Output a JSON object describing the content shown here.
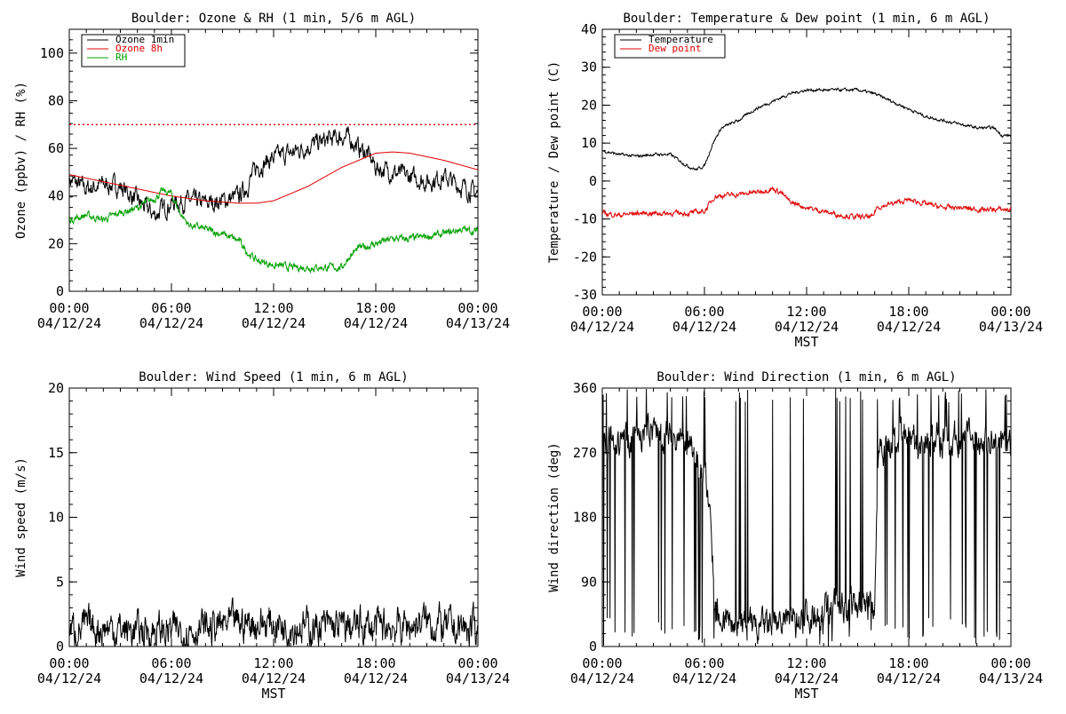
{
  "chart_data": [
    {
      "type": "line",
      "title": "Boulder: Ozone & RH (1 min, 5/6 m AGL)",
      "xlabel": "",
      "ylabel": "Ozone (ppbv) / RH (%)",
      "xlim": [
        0,
        24
      ],
      "ylim": [
        0,
        110
      ],
      "yticks": [
        0,
        20,
        40,
        60,
        80,
        100
      ],
      "xticks": [
        "00:00\n04/12/24",
        "06:00\n04/12/24",
        "12:00\n04/12/24",
        "18:00\n04/12/24",
        "00:00\n04/13/24"
      ],
      "legend": "top-left",
      "reference_line": {
        "y": 70,
        "color": "#e00000",
        "style": "dotted"
      },
      "series": [
        {
          "name": "Ozone 1min",
          "color": "#000000",
          "noise": 3,
          "x": [
            0,
            1,
            2,
            3,
            4,
            5,
            6,
            7,
            8,
            9,
            10,
            10.5,
            11,
            12,
            13,
            14,
            15,
            16,
            16.5,
            17,
            17.5,
            18,
            19,
            20,
            21,
            22,
            23,
            24
          ],
          "y": [
            47,
            43,
            45,
            44,
            38,
            32,
            37,
            38,
            37,
            38,
            40,
            45,
            52,
            56,
            58,
            61,
            63,
            65,
            64,
            60,
            58,
            52,
            50,
            48,
            46,
            48,
            44,
            41
          ]
        },
        {
          "name": "Ozone 8h",
          "color": "#e00000",
          "noise": 0,
          "x": [
            0,
            2,
            4,
            6,
            8,
            10,
            11,
            12,
            14,
            16,
            18,
            19,
            20,
            22,
            24
          ],
          "y": [
            49,
            46,
            43,
            40,
            38,
            37,
            37,
            38,
            44,
            52,
            58,
            58.5,
            58,
            55,
            51
          ]
        },
        {
          "name": "RH",
          "color": "#00a000",
          "noise": 1.2,
          "x": [
            0,
            1,
            2,
            3,
            4,
            5,
            5.5,
            6,
            6.5,
            7,
            8,
            9,
            10,
            10.5,
            11,
            12,
            13,
            14,
            15,
            16,
            16.5,
            17,
            18,
            19,
            20,
            21,
            22,
            23,
            24
          ],
          "y": [
            30,
            32,
            30,
            33,
            35,
            39,
            42,
            41,
            33,
            28,
            26,
            24,
            21,
            16,
            13,
            11,
            10,
            10,
            10,
            10,
            15,
            18,
            20,
            22,
            22,
            23,
            24,
            26,
            25
          ]
        }
      ]
    },
    {
      "type": "line",
      "title": "Boulder: Temperature & Dew point (1 min, 6 m AGL)",
      "xlabel": "MST",
      "ylabel": "Temperature / Dew point (C)",
      "xlim": [
        0,
        24
      ],
      "ylim": [
        -30,
        40
      ],
      "yticks": [
        -30,
        -20,
        -10,
        0,
        10,
        20,
        30,
        40
      ],
      "xticks": [
        "00:00\n04/12/24",
        "06:00\n04/12/24",
        "12:00\n04/12/24",
        "18:00\n04/12/24",
        "00:00\n04/13/24"
      ],
      "legend": "top-left",
      "series": [
        {
          "name": "Temperature",
          "color": "#000000",
          "noise": 0.3,
          "x": [
            0,
            1,
            2,
            3,
            4,
            5,
            5.5,
            6,
            6.5,
            7,
            8,
            9,
            10,
            11,
            12,
            13,
            14,
            15,
            16,
            17,
            18,
            19,
            20,
            21,
            22,
            23,
            23.5,
            24
          ],
          "y": [
            8,
            7,
            6.5,
            7,
            7,
            4,
            3,
            4,
            10,
            14,
            16,
            19,
            21,
            23,
            24,
            24,
            24,
            24,
            23,
            21,
            19,
            17,
            16,
            15,
            14,
            14,
            12,
            12
          ]
        },
        {
          "name": "Dew point",
          "color": "#e00000",
          "noise": 0.5,
          "x": [
            0,
            1,
            2,
            3,
            4,
            5,
            6,
            6.3,
            6.6,
            8,
            9,
            10,
            10.5,
            11,
            12,
            13,
            14,
            15,
            15.9,
            16.1,
            17,
            18,
            19,
            20,
            21,
            22,
            23,
            24
          ],
          "y": [
            -8.5,
            -9,
            -8.5,
            -8.5,
            -8.5,
            -8.5,
            -8,
            -6,
            -4,
            -3.5,
            -3,
            -2,
            -3,
            -5.5,
            -7,
            -8,
            -9,
            -9.5,
            -9.5,
            -7,
            -6,
            -5,
            -6,
            -7,
            -7,
            -7.5,
            -7.5,
            -7.5
          ]
        }
      ]
    },
    {
      "type": "line",
      "title": "Boulder: Wind Speed (1 min, 6 m AGL)",
      "xlabel": "MST",
      "ylabel": "Wind speed (m/s)",
      "xlim": [
        0,
        24
      ],
      "ylim": [
        0,
        20
      ],
      "yticks": [
        0,
        5,
        10,
        15,
        20
      ],
      "xticks": [
        "00:00\n04/12/24",
        "06:00\n04/12/24",
        "12:00\n04/12/24",
        "18:00\n04/12/24",
        "00:00\n04/13/24"
      ],
      "series": [
        {
          "color": "#000000",
          "noise": 1.1,
          "x": [
            0,
            2,
            4,
            6,
            8,
            10,
            12,
            14,
            16,
            18,
            20,
            21,
            22,
            24
          ],
          "y": [
            1.3,
            1.5,
            1.2,
            1.2,
            1.4,
            1.8,
            1.8,
            1.5,
            1.5,
            1.5,
            1.6,
            2.0,
            1.5,
            1.3
          ]
        }
      ]
    },
    {
      "type": "line",
      "title": "Boulder: Wind Direction (1 min, 6 m AGL)",
      "xlabel": "MST",
      "ylabel": "Wind direction (deg)",
      "xlim": [
        0,
        24
      ],
      "ylim": [
        0,
        360
      ],
      "yticks": [
        0,
        90,
        180,
        270,
        360
      ],
      "xticks": [
        "00:00\n04/12/24",
        "06:00\n04/12/24",
        "12:00\n04/12/24",
        "18:00\n04/12/24",
        "00:00\n04/13/24"
      ],
      "series": [
        {
          "color": "#000000",
          "noise": 18,
          "spikes": 0.1,
          "x": [
            0,
            1,
            2,
            3,
            4,
            5,
            6,
            6.3,
            6.6,
            7,
            8,
            9,
            10,
            11,
            12,
            13,
            14,
            15,
            16,
            16.2,
            17,
            18,
            19,
            20,
            21,
            22,
            23,
            24
          ],
          "y": [
            290,
            280,
            300,
            300,
            295,
            280,
            240,
            200,
            60,
            40,
            30,
            25,
            30,
            40,
            45,
            50,
            60,
            55,
            60,
            280,
            280,
            290,
            285,
            290,
            290,
            290,
            280,
            280
          ]
        }
      ]
    }
  ]
}
